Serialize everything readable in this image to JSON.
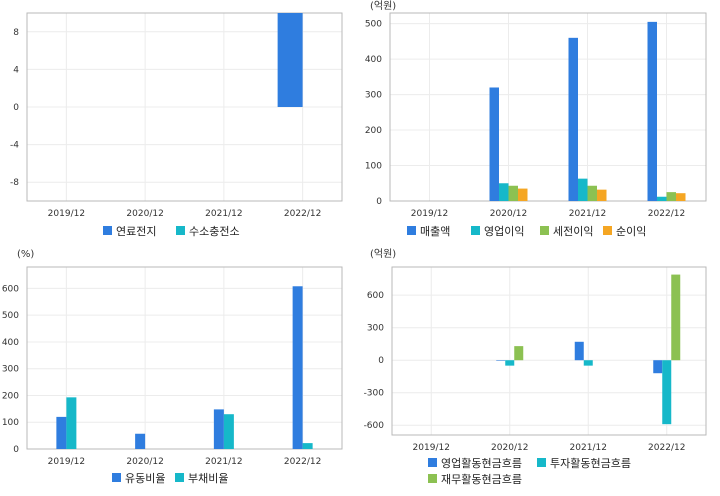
{
  "chart_data": [
    {
      "type": "bar",
      "unit": "",
      "categories": [
        "2019/12",
        "2020/12",
        "2021/12",
        "2022/12"
      ],
      "series": [
        {
          "name": "연료전지",
          "color": "#2f7ddf",
          "values": [
            null,
            null,
            null,
            10
          ]
        },
        {
          "name": "수소충전소",
          "color": "#16b8c9",
          "values": [
            null,
            null,
            null,
            null
          ]
        }
      ],
      "yticks": [
        -8,
        -4,
        0,
        4,
        8
      ],
      "ylim": [
        -10,
        10
      ],
      "legend": "bottom",
      "grid": true
    },
    {
      "type": "bar",
      "unit": "(억원)",
      "categories": [
        "2019/12",
        "2020/12",
        "2021/12",
        "2022/12"
      ],
      "series": [
        {
          "name": "매출액",
          "color": "#2f7ddf",
          "values": [
            null,
            320,
            460,
            505
          ]
        },
        {
          "name": "영업이익",
          "color": "#16b8c9",
          "values": [
            null,
            50,
            63,
            12
          ]
        },
        {
          "name": "세전이익",
          "color": "#8cc152",
          "values": [
            null,
            43,
            43,
            25
          ]
        },
        {
          "name": "순이익",
          "color": "#f5a623",
          "values": [
            null,
            35,
            32,
            22
          ]
        }
      ],
      "yticks": [
        0,
        100,
        200,
        300,
        400,
        500
      ],
      "ylim": [
        0,
        530
      ],
      "legend": "bottom",
      "grid": true
    },
    {
      "type": "bar",
      "unit": "(%)",
      "categories": [
        "2019/12",
        "2020/12",
        "2021/12",
        "2022/12"
      ],
      "series": [
        {
          "name": "유동비율",
          "color": "#2f7ddf",
          "values": [
            120,
            57,
            148,
            608
          ]
        },
        {
          "name": "부채비율",
          "color": "#16b8c9",
          "values": [
            193,
            null,
            130,
            22
          ]
        }
      ],
      "yticks": [
        0,
        100,
        200,
        300,
        400,
        500,
        600
      ],
      "ylim": [
        0,
        680
      ],
      "legend": "bottom",
      "grid": true
    },
    {
      "type": "bar",
      "unit": "(억원)",
      "categories": [
        "2019/12",
        "2020/12",
        "2021/12",
        "2022/12"
      ],
      "series": [
        {
          "name": "영업활동현금흐름",
          "color": "#2f7ddf",
          "values": [
            null,
            -5,
            170,
            -120
          ]
        },
        {
          "name": "투자활동현금흐름",
          "color": "#16b8c9",
          "values": [
            null,
            -50,
            -50,
            -590
          ]
        },
        {
          "name": "재무활동현금흐름",
          "color": "#8cc152",
          "values": [
            null,
            130,
            null,
            790
          ]
        }
      ],
      "yticks": [
        -600,
        -300,
        0,
        300,
        600
      ],
      "ylim": [
        -690,
        860
      ],
      "legend": "bottom",
      "grid": true
    }
  ]
}
